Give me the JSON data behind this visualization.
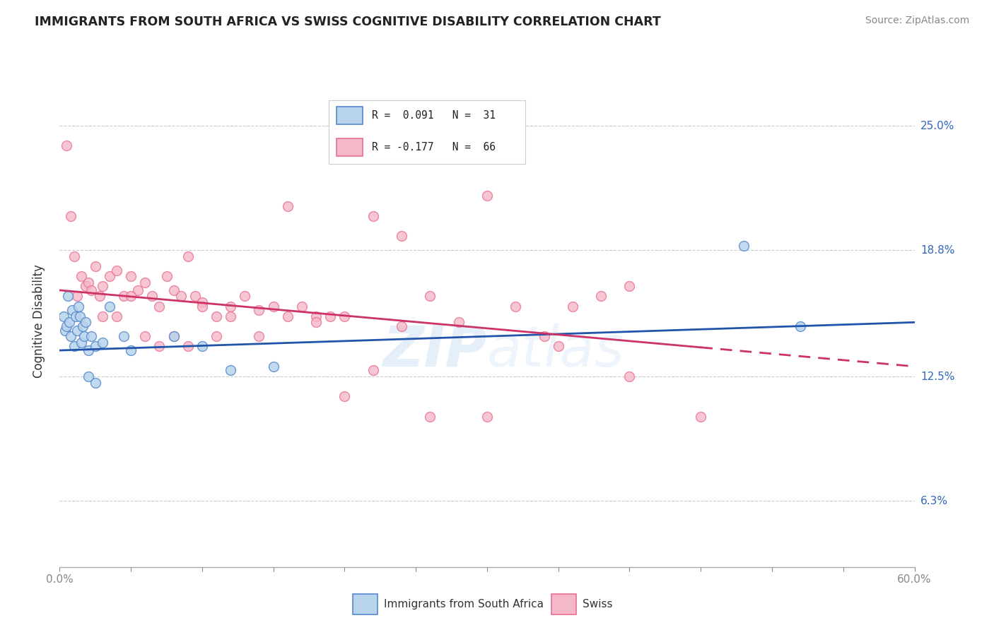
{
  "title": "IMMIGRANTS FROM SOUTH AFRICA VS SWISS COGNITIVE DISABILITY CORRELATION CHART",
  "source": "Source: ZipAtlas.com",
  "ylabel": "Cognitive Disability",
  "ytick_labels": [
    "6.3%",
    "12.5%",
    "18.8%",
    "25.0%"
  ],
  "ytick_values": [
    6.3,
    12.5,
    18.8,
    25.0
  ],
  "xmin": 0.0,
  "xmax": 60.0,
  "ymin": 3.0,
  "ymax": 27.5,
  "legend_r1": "R =  0.091",
  "legend_n1": "N =  31",
  "legend_r2": "R = -0.177",
  "legend_n2": "N =  66",
  "color_blue_fill": "#b8d4ec",
  "color_pink_fill": "#f5b8c8",
  "color_blue_edge": "#5588cc",
  "color_pink_edge": "#e87090",
  "color_blue_line": "#2255aa",
  "color_pink_line": "#cc3366",
  "watermark": "ZIPatlas",
  "blue_r": 0.091,
  "blue_n": 31,
  "pink_r": -0.177,
  "pink_n": 66,
  "blue_line_x0": 0.0,
  "blue_line_y0": 13.8,
  "blue_line_x1": 60.0,
  "blue_line_y1": 15.2,
  "pink_line_x0": 0.0,
  "pink_line_y0": 16.8,
  "pink_line_x1": 60.0,
  "pink_line_y1": 13.0,
  "pink_dash_start": 45.0,
  "blue_scatter_x": [
    0.3,
    0.4,
    0.5,
    0.6,
    0.7,
    0.8,
    0.9,
    1.0,
    1.1,
    1.2,
    1.3,
    1.4,
    1.5,
    1.6,
    1.7,
    1.8,
    2.0,
    2.2,
    2.5,
    3.5,
    4.5,
    5.0,
    8.0,
    10.0,
    12.0,
    15.0,
    2.0,
    2.5,
    3.0,
    48.0,
    52.0
  ],
  "blue_scatter_y": [
    15.5,
    14.8,
    15.0,
    16.5,
    15.2,
    14.5,
    15.8,
    14.0,
    15.5,
    14.8,
    16.0,
    15.5,
    14.2,
    15.0,
    14.5,
    15.2,
    13.8,
    14.5,
    14.0,
    16.0,
    14.5,
    13.8,
    14.5,
    14.0,
    12.8,
    13.0,
    12.5,
    12.2,
    14.2,
    19.0,
    15.0
  ],
  "pink_scatter_x": [
    0.5,
    0.8,
    1.0,
    1.2,
    1.5,
    1.8,
    2.0,
    2.2,
    2.5,
    2.8,
    3.0,
    3.5,
    4.0,
    4.5,
    5.0,
    5.5,
    6.0,
    6.5,
    7.0,
    7.5,
    8.0,
    8.5,
    9.0,
    9.5,
    10.0,
    11.0,
    12.0,
    13.0,
    14.0,
    15.0,
    16.0,
    17.0,
    18.0,
    19.0,
    20.0,
    22.0,
    24.0,
    26.0,
    28.0,
    30.0,
    32.0,
    34.0,
    36.0,
    38.0,
    40.0,
    3.0,
    4.0,
    5.0,
    6.0,
    7.0,
    8.0,
    9.0,
    10.0,
    11.0,
    12.0,
    14.0,
    16.0,
    18.0,
    20.0,
    22.0,
    24.0,
    26.0,
    30.0,
    35.0,
    40.0,
    45.0
  ],
  "pink_scatter_y": [
    24.0,
    20.5,
    18.5,
    16.5,
    17.5,
    17.0,
    17.2,
    16.8,
    18.0,
    16.5,
    17.0,
    17.5,
    17.8,
    16.5,
    17.5,
    16.8,
    17.2,
    16.5,
    16.0,
    17.5,
    16.8,
    16.5,
    18.5,
    16.5,
    16.2,
    15.5,
    16.0,
    16.5,
    15.8,
    16.0,
    21.0,
    16.0,
    15.5,
    15.5,
    15.5,
    20.5,
    19.5,
    16.5,
    15.2,
    21.5,
    16.0,
    14.5,
    16.0,
    16.5,
    17.0,
    15.5,
    15.5,
    16.5,
    14.5,
    14.0,
    14.5,
    14.0,
    16.0,
    14.5,
    15.5,
    14.5,
    15.5,
    15.2,
    11.5,
    12.8,
    15.0,
    10.5,
    10.5,
    14.0,
    12.5,
    10.5
  ]
}
